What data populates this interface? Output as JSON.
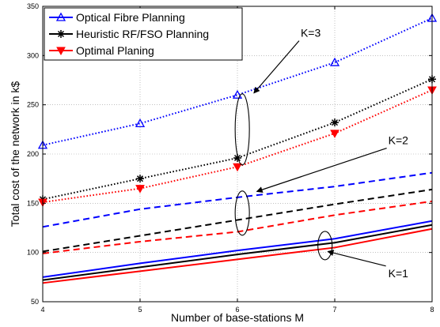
{
  "chart_data": {
    "type": "line",
    "xlabel": "Number of base-stations M",
    "ylabel": "Total cost of the network in k$",
    "x": [
      4,
      5,
      6,
      7,
      8
    ],
    "xlim": [
      4,
      8
    ],
    "ylim": [
      50,
      350
    ],
    "xticks": [
      "4",
      "5",
      "6",
      "7",
      "8"
    ],
    "yticks": [
      "50",
      "100",
      "150",
      "200",
      "250",
      "300",
      "350"
    ],
    "grid": true,
    "legend_position": "top-left",
    "legend": [
      {
        "name": "Optical Fibre Planning",
        "color": "#0000ff",
        "marker": "triangle-up"
      },
      {
        "name": "Heuristic RF/FSO Planning",
        "color": "#000000",
        "marker": "asterisk"
      },
      {
        "name": "Optimal Planing",
        "color": "#ff0000",
        "marker": "triangle-down"
      }
    ],
    "series": [
      {
        "group": "K=3",
        "legend_index": 0,
        "color": "#0000ff",
        "line": "dotted",
        "marker": "triangle-up",
        "values": [
          209,
          231,
          260,
          293,
          338
        ]
      },
      {
        "group": "K=3",
        "legend_index": 1,
        "color": "#000000",
        "line": "dotted",
        "marker": "asterisk",
        "values": [
          154,
          175,
          196,
          232,
          276
        ]
      },
      {
        "group": "K=3",
        "legend_index": 2,
        "color": "#ff0000",
        "line": "dotted",
        "marker": "triangle-down",
        "values": [
          151,
          165,
          187,
          221,
          265
        ]
      },
      {
        "group": "K=2",
        "legend_index": 0,
        "color": "#0000ff",
        "line": "dashed",
        "marker": "none",
        "values": [
          126,
          144,
          156,
          167,
          181
        ]
      },
      {
        "group": "K=2",
        "legend_index": 1,
        "color": "#000000",
        "line": "dashed",
        "marker": "none",
        "values": [
          101,
          117,
          133,
          149,
          164
        ]
      },
      {
        "group": "K=2",
        "legend_index": 2,
        "color": "#ff0000",
        "line": "dashed",
        "marker": "none",
        "values": [
          99,
          111,
          121,
          138,
          152
        ]
      },
      {
        "group": "K=1",
        "legend_index": 0,
        "color": "#0000ff",
        "line": "solid",
        "marker": "none",
        "values": [
          75,
          89,
          102,
          114,
          132
        ]
      },
      {
        "group": "K=1",
        "legend_index": 1,
        "color": "#000000",
        "line": "solid",
        "marker": "none",
        "values": [
          72,
          85,
          98,
          110,
          128
        ]
      },
      {
        "group": "K=1",
        "legend_index": 2,
        "color": "#ff0000",
        "line": "solid",
        "marker": "none",
        "values": [
          69,
          81,
          93,
          105,
          124
        ]
      }
    ],
    "annotations": [
      {
        "label": "K=3",
        "ellipse_center": [
          6.05,
          225
        ],
        "text_at": [
          6.65,
          319
        ]
      },
      {
        "label": "K=2",
        "ellipse_center": [
          6.05,
          140
        ],
        "text_at": [
          7.55,
          210
        ]
      },
      {
        "label": "K=1",
        "ellipse_center": [
          6.9,
          107
        ],
        "text_at": [
          7.55,
          75
        ]
      }
    ]
  }
}
